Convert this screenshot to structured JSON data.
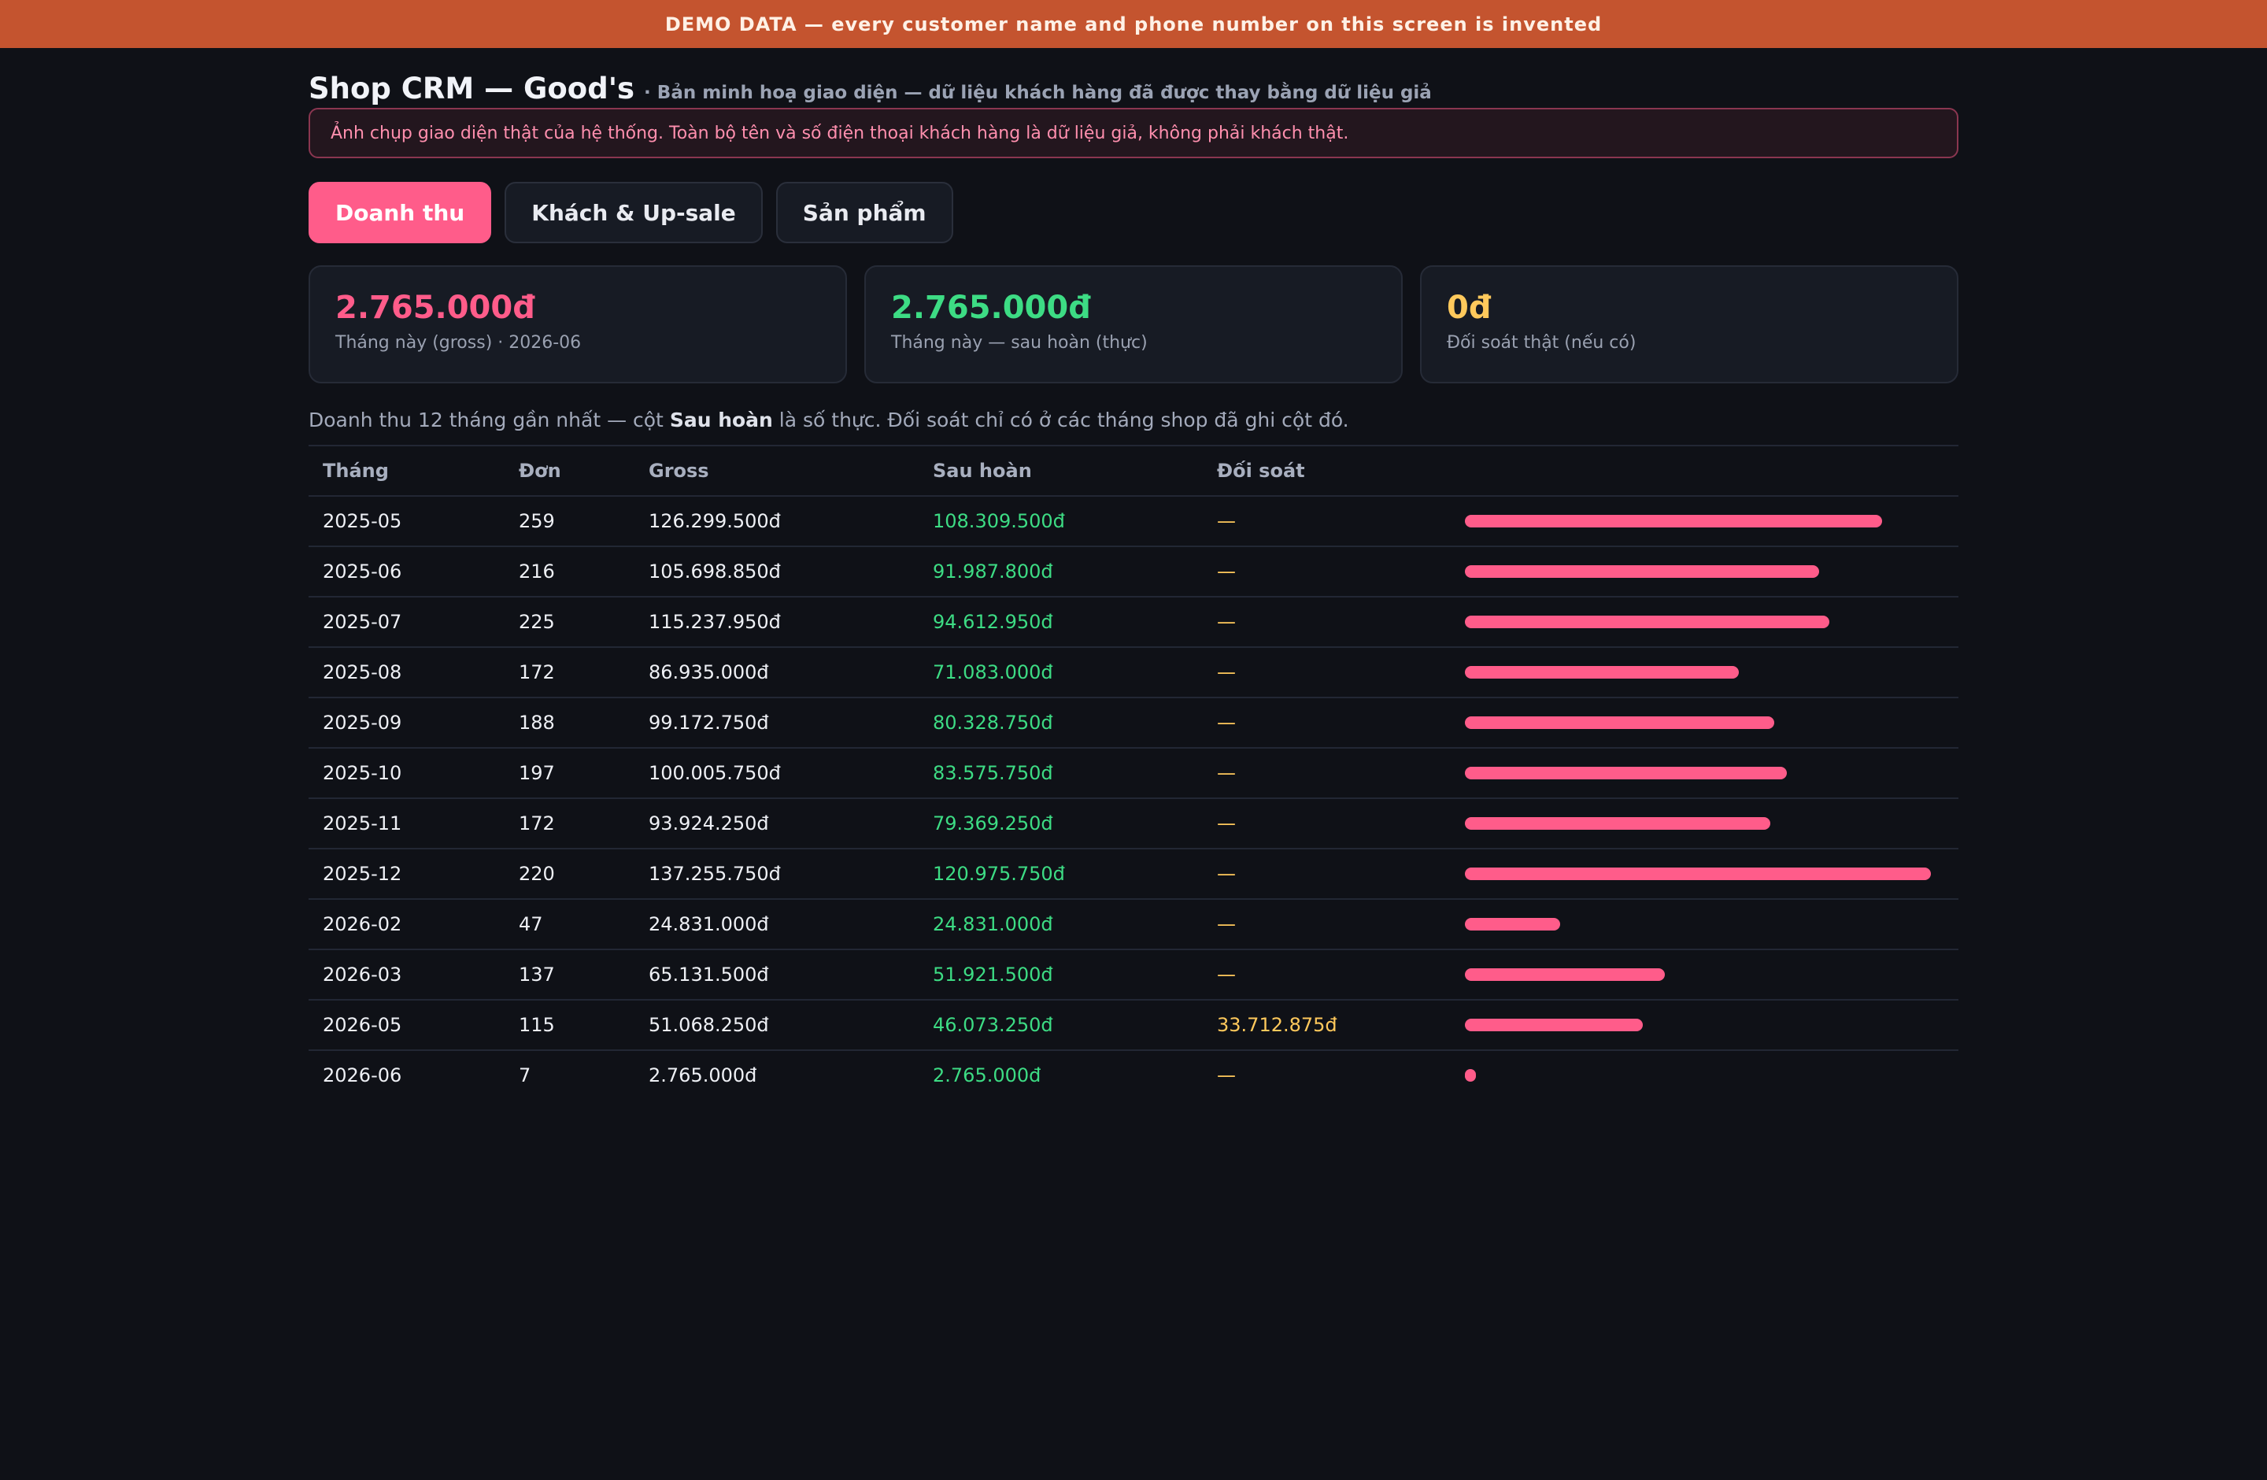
{
  "banner": "DEMO DATA — every customer name and phone number on this screen is invented",
  "header": {
    "title": "Shop CRM — Good's",
    "subtitle": "· Bản minh hoạ giao diện — dữ liệu khách hàng đã được thay bằng dữ liệu giả",
    "notice": "Ảnh chụp giao diện thật của hệ thống. Toàn bộ tên và số điện thoại khách hàng là dữ liệu giả, không phải khách thật."
  },
  "tabs": [
    {
      "label": "Doanh thu",
      "active": true
    },
    {
      "label": "Khách & Up-sale",
      "active": false
    },
    {
      "label": "Sản phẩm",
      "active": false
    }
  ],
  "cards": [
    {
      "value": "2.765.000đ",
      "label": "Tháng này (gross) · 2026-06",
      "color": "#ff5c8a"
    },
    {
      "value": "2.765.000đ",
      "label": "Tháng này — sau hoàn (thực)",
      "color": "#3ddc84"
    },
    {
      "value": "0đ",
      "label": "Đối soát thật (nếu có)",
      "color": "#ffc95c"
    }
  ],
  "description": {
    "before": "Doanh thu 12 tháng gần nhất — cột ",
    "bold": "Sau hoàn",
    "after": " là số thực. Đối soát chỉ có ở các tháng shop đã ghi cột đó."
  },
  "table": {
    "columns": [
      "Tháng",
      "Đơn",
      "Gross",
      "Sau hoàn",
      "Đối soát",
      ""
    ],
    "rows": [
      {
        "month": "2025-05",
        "orders": "259",
        "gross": "126.299.500đ",
        "net": "108.309.500đ",
        "recon": "—",
        "bar": 0.895
      },
      {
        "month": "2025-06",
        "orders": "216",
        "gross": "105.698.850đ",
        "net": "91.987.800đ",
        "recon": "—",
        "bar": 0.76
      },
      {
        "month": "2025-07",
        "orders": "225",
        "gross": "115.237.950đ",
        "net": "94.612.950đ",
        "recon": "—",
        "bar": 0.782
      },
      {
        "month": "2025-08",
        "orders": "172",
        "gross": "86.935.000đ",
        "net": "71.083.000đ",
        "recon": "—",
        "bar": 0.588
      },
      {
        "month": "2025-09",
        "orders": "188",
        "gross": "99.172.750đ",
        "net": "80.328.750đ",
        "recon": "—",
        "bar": 0.664
      },
      {
        "month": "2025-10",
        "orders": "197",
        "gross": "100.005.750đ",
        "net": "83.575.750đ",
        "recon": "—",
        "bar": 0.691
      },
      {
        "month": "2025-11",
        "orders": "172",
        "gross": "93.924.250đ",
        "net": "79.369.250đ",
        "recon": "—",
        "bar": 0.656
      },
      {
        "month": "2025-12",
        "orders": "220",
        "gross": "137.255.750đ",
        "net": "120.975.750đ",
        "recon": "—",
        "bar": 1.0
      },
      {
        "month": "2026-02",
        "orders": "47",
        "gross": "24.831.000đ",
        "net": "24.831.000đ",
        "recon": "—",
        "bar": 0.205
      },
      {
        "month": "2026-03",
        "orders": "137",
        "gross": "65.131.500đ",
        "net": "51.921.500đ",
        "recon": "—",
        "bar": 0.429
      },
      {
        "month": "2026-05",
        "orders": "115",
        "gross": "51.068.250đ",
        "net": "46.073.250đ",
        "recon": "33.712.875đ",
        "bar": 0.381
      },
      {
        "month": "2026-06",
        "orders": "7",
        "gross": "2.765.000đ",
        "net": "2.765.000đ",
        "recon": "—",
        "bar": 0.023
      }
    ]
  },
  "colors": {
    "accent": "#ff5c8a",
    "positive": "#3ddc84",
    "recon": "#ffc95c",
    "banner": "#c4542f"
  }
}
